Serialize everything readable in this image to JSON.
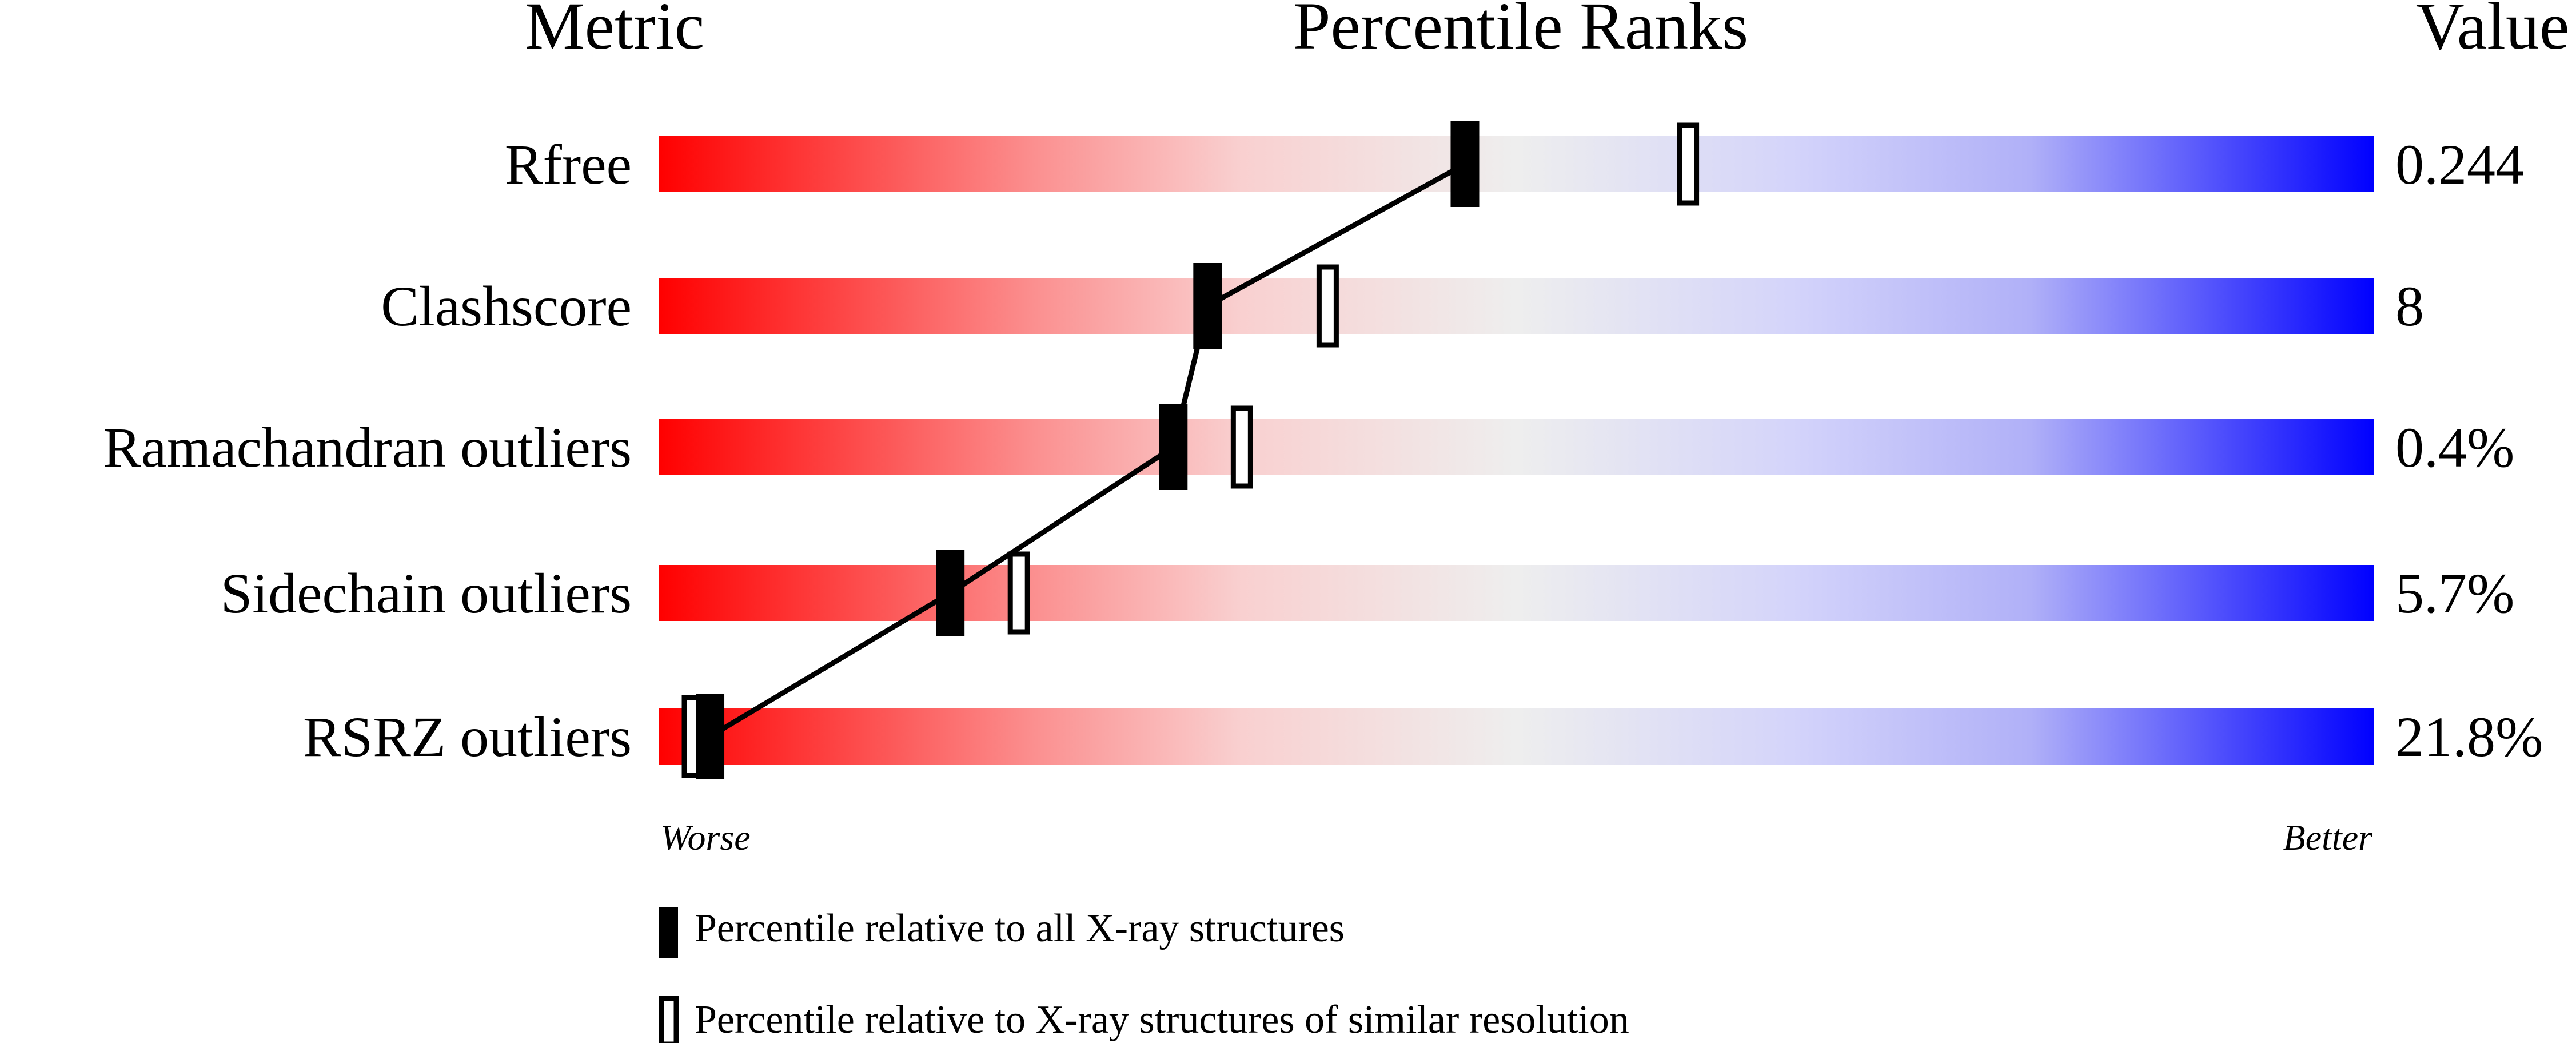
{
  "chart_data": {
    "type": "slider",
    "headers": {
      "metric": "Metric",
      "percentile": "Percentile Ranks",
      "value": "Value"
    },
    "xlim": [
      0,
      100
    ],
    "axis_labels": {
      "left": "Worse",
      "right": "Better"
    },
    "gradient_colors": [
      "#ff0000",
      "#f0f0f0",
      "#0000ff"
    ],
    "metrics": [
      {
        "name": "Rfree",
        "value": "0.244",
        "percentile_all": 47,
        "percentile_similar": 60
      },
      {
        "name": "Clashscore",
        "value": "8",
        "percentile_all": 32,
        "percentile_similar": 39
      },
      {
        "name": "Ramachandran outliers",
        "value": "0.4%",
        "percentile_all": 30,
        "percentile_similar": 34
      },
      {
        "name": "Sidechain outliers",
        "value": "5.7%",
        "percentile_all": 17,
        "percentile_similar": 21
      },
      {
        "name": "RSRZ outliers",
        "value": "21.8%",
        "percentile_all": 3,
        "percentile_similar": 2
      }
    ],
    "legend": [
      {
        "marker": "filled",
        "label": "Percentile relative to all X-ray structures"
      },
      {
        "marker": "open",
        "label": "Percentile relative to X-ray structures of similar resolution"
      }
    ]
  }
}
